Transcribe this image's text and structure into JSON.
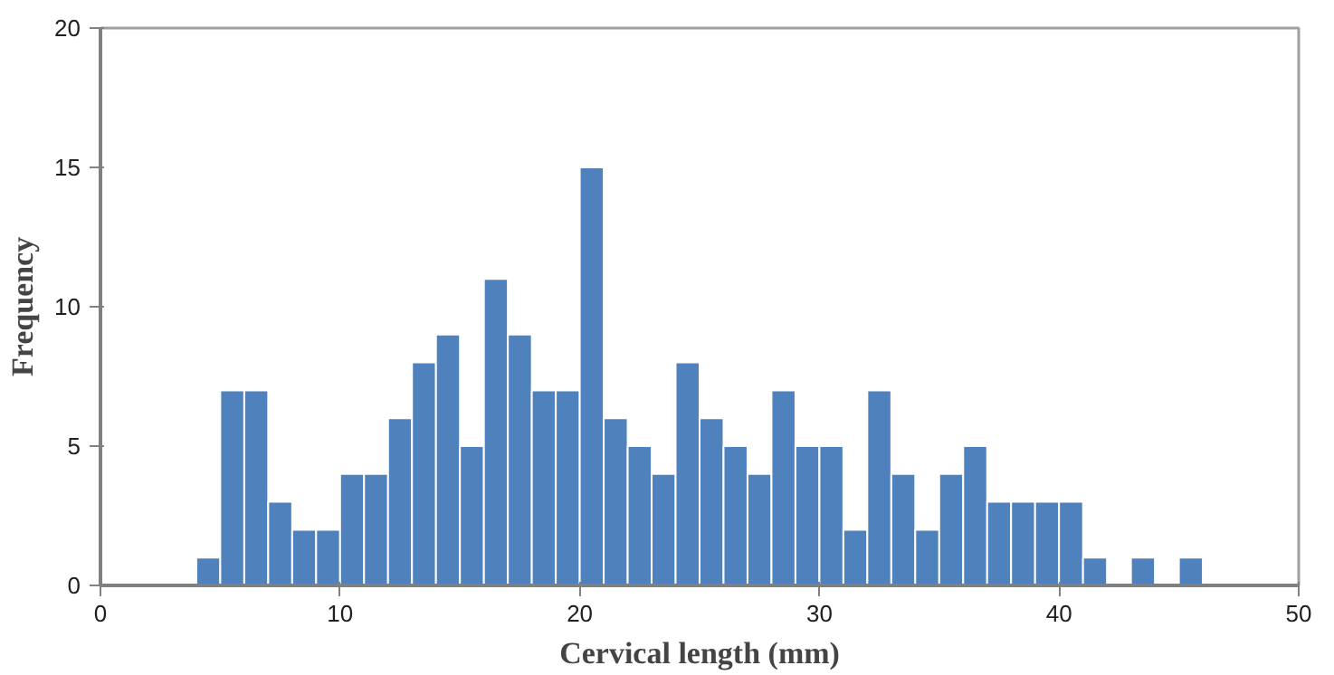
{
  "chart_data": {
    "type": "histogram",
    "xlabel": "Cervical length (mm)",
    "ylabel": "Frequency",
    "color": "#4f81bd",
    "bins": [
      4,
      5,
      6,
      7,
      8,
      9,
      10,
      11,
      12,
      13,
      14,
      15,
      16,
      17,
      18,
      19,
      20,
      21,
      22,
      23,
      24,
      25,
      26,
      27,
      28,
      29,
      30,
      31,
      32,
      33,
      34,
      35,
      36,
      37,
      38,
      39,
      40,
      41,
      42,
      43,
      44,
      45,
      46
    ],
    "values": [
      1,
      7,
      7,
      3,
      2,
      2,
      4,
      4,
      6,
      8,
      9,
      5,
      11,
      9,
      7,
      7,
      15,
      6,
      5,
      4,
      8,
      6,
      5,
      4,
      7,
      5,
      5,
      2,
      7,
      4,
      2,
      4,
      5,
      3,
      3,
      3,
      3,
      1,
      0,
      1,
      0,
      1
    ],
    "xlim": [
      0,
      50
    ],
    "xticks": [
      0,
      10,
      20,
      30,
      40,
      50
    ],
    "ylim": [
      0,
      20
    ],
    "yticks": [
      0,
      5,
      10,
      15,
      20
    ],
    "grid": false
  }
}
